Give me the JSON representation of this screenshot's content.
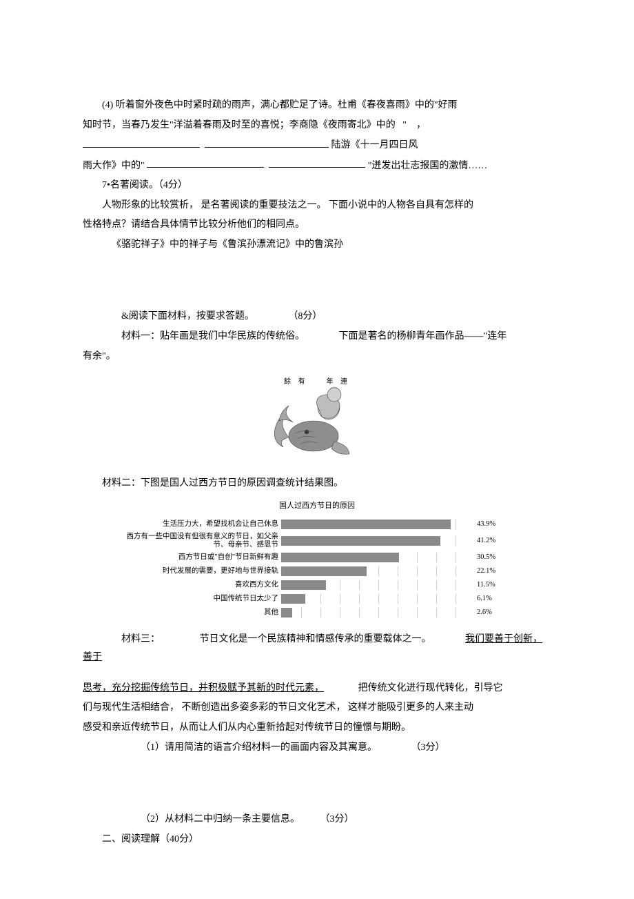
{
  "q4": {
    "line1": "(4) 听着窗外夜色中时紧时疏的雨声，满心都贮足了诗。杜甫《春夜喜雨》中的\"好雨",
    "line2_pre": "知时节，当春乃发生\"洋溢着春雨及时至的喜悦；李商隐《夜雨寄北》中的",
    "quote_open": "\"",
    "comma": "，",
    "line3_tail": " 陆游《十一月四日风",
    "line4_pre": "雨大作》中的\"",
    "line4_tail": "\"迸发出壮志报国的激情……"
  },
  "q7": {
    "heading": "7•名著阅读。（4分）",
    "p1": "人物形象的比较赏析，",
    "p1_mid": " 是名著阅读的重要技法之一。",
    "p1_tail": " 下面小说中的人物各自具有怎样的",
    "p2": "性格特点？请结合具体情节比较分析他们的相同点。",
    "p3": "《骆驼祥子》中的祥子与《鲁滨孙漂流记》中的鲁滨孙"
  },
  "q8": {
    "heading_pre": "&阅读下面材料，按要求答题。",
    "heading_pts": "（8分）",
    "m1_pre": "材料一：贴年画是我们中华民族的传统俗。",
    "m1_mid": "下面是著名的杨柳青年画作品——\"连年",
    "m1_tail": "有余\"。",
    "nianhua_chars": "餘 有 　 年 連",
    "m2": "材料二：下图是国人过西方节日的原因调查统计结果图。",
    "chart": {
      "title": "国人过西方节日的原因",
      "max": 50,
      "bars": [
        {
          "label": "生活压力大，希望找机会让自己休息",
          "value": 43.9,
          "display": "43.9%"
        },
        {
          "label": "西方有一些中国没有但很有意义的节日，如父亲节、母亲节、感恩节",
          "value": 41.2,
          "display": "41.2%",
          "twoline": true
        },
        {
          "label": "西方节日或\"自创\"节日新鲜有趣",
          "value": 30.5,
          "display": "30.5%"
        },
        {
          "label": "时代发展的需要，更好地与世界接轨",
          "value": 22.1,
          "display": "22.1%"
        },
        {
          "label": "喜欢西方文化",
          "value": 11.5,
          "display": "11.5%"
        },
        {
          "label": "中国传统节日太少了",
          "value": 6.1,
          "display": "6.1%"
        },
        {
          "label": "其他",
          "value": 2.6,
          "display": "2.6%"
        }
      ]
    },
    "m3_lead": "材料三：",
    "m3_s1": "节日文化是一个民族精神和情感传承的重要载体之一。",
    "m3_u1": "我们要善于创新，",
    "m3_u1b": "善于",
    "m3_u2": "思考，充分挖掘传统节日，并积极赋予其新的时代元素，",
    "m3_s2": "把传统文化进行现代转化，引导它",
    "m3_p2a": "们与现代生活相结合，",
    "m3_p2b": " 不断创造出多姿多彩的节日文化艺术，",
    "m3_p2c": " 这样才能吸引更多的人来主动",
    "m3_p3": "感受和亲近传统节日，从而让人们从内心重新拾起对传统节日的憧憬与期盼。",
    "sub1_pre": "（1）请用简洁的语言介绍材料一的画面内容及其寓意。",
    "sub1_pts": "（3分）",
    "sub2_pre": "（2）从材料二中归纳一条主要信息。",
    "sub2_pts": "（3分）"
  },
  "section2": "二、阅读理解（40分）"
}
